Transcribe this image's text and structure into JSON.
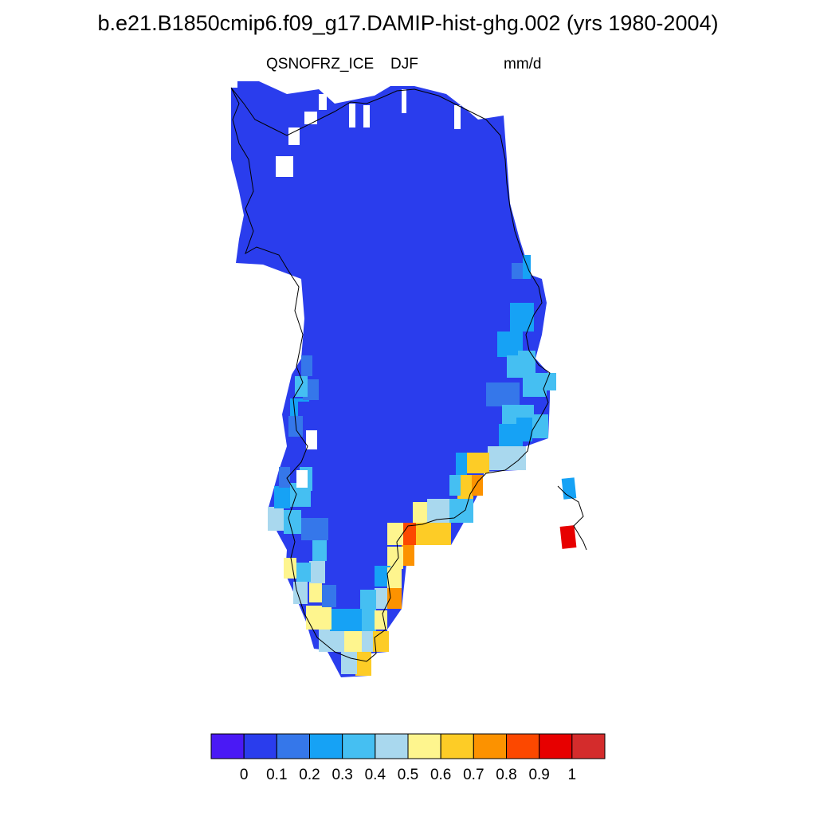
{
  "title": "b.e21.B1850cmip6.f09_g17.DAMIP-hist-ghg.002 (yrs 1980-2004)",
  "left_string": "QSNOFRZ_ICE",
  "center_string": "DJF",
  "right_string": "mm/d",
  "colorbar": {
    "colors": [
      "#4a19f5",
      "#2a3ded",
      "#3577ea",
      "#16a2f5",
      "#45bff2",
      "#a9d8ee",
      "#fef58e",
      "#fdcc26",
      "#fc9200",
      "#fc4800",
      "#e70000",
      "#d42c2c"
    ],
    "labels": [
      "0",
      "0.1",
      "0.2",
      "0.3",
      "0.4",
      "0.5",
      "0.6",
      "0.7",
      "0.8",
      "0.9",
      "1"
    ]
  },
  "map": {
    "region": "Greenland",
    "background_color": "#2a3ded",
    "coastline_color": "#000000"
  }
}
